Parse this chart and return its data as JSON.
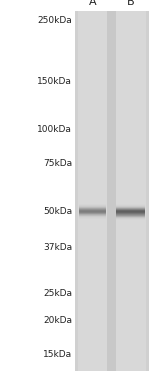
{
  "fig_bg": "#f0f0f0",
  "gel_bg": "#e0e0e0",
  "lane_bg": "#cccccc",
  "white_bg": "#ffffff",
  "markers": [
    250,
    150,
    100,
    75,
    50,
    37,
    25,
    20,
    15
  ],
  "marker_labels": [
    "250kDa",
    "150kDa",
    "100kDa",
    "75kDa",
    "50kDa",
    "37kDa",
    "25kDa",
    "20kDa",
    "15kDa"
  ],
  "ymin": 13,
  "ymax": 270,
  "band_kda": 50,
  "lane_A_label": "A",
  "lane_B_label": "B",
  "label_fontsize": 8,
  "marker_fontsize": 6.5,
  "fig_width": 1.5,
  "fig_height": 3.75,
  "dpi": 100
}
